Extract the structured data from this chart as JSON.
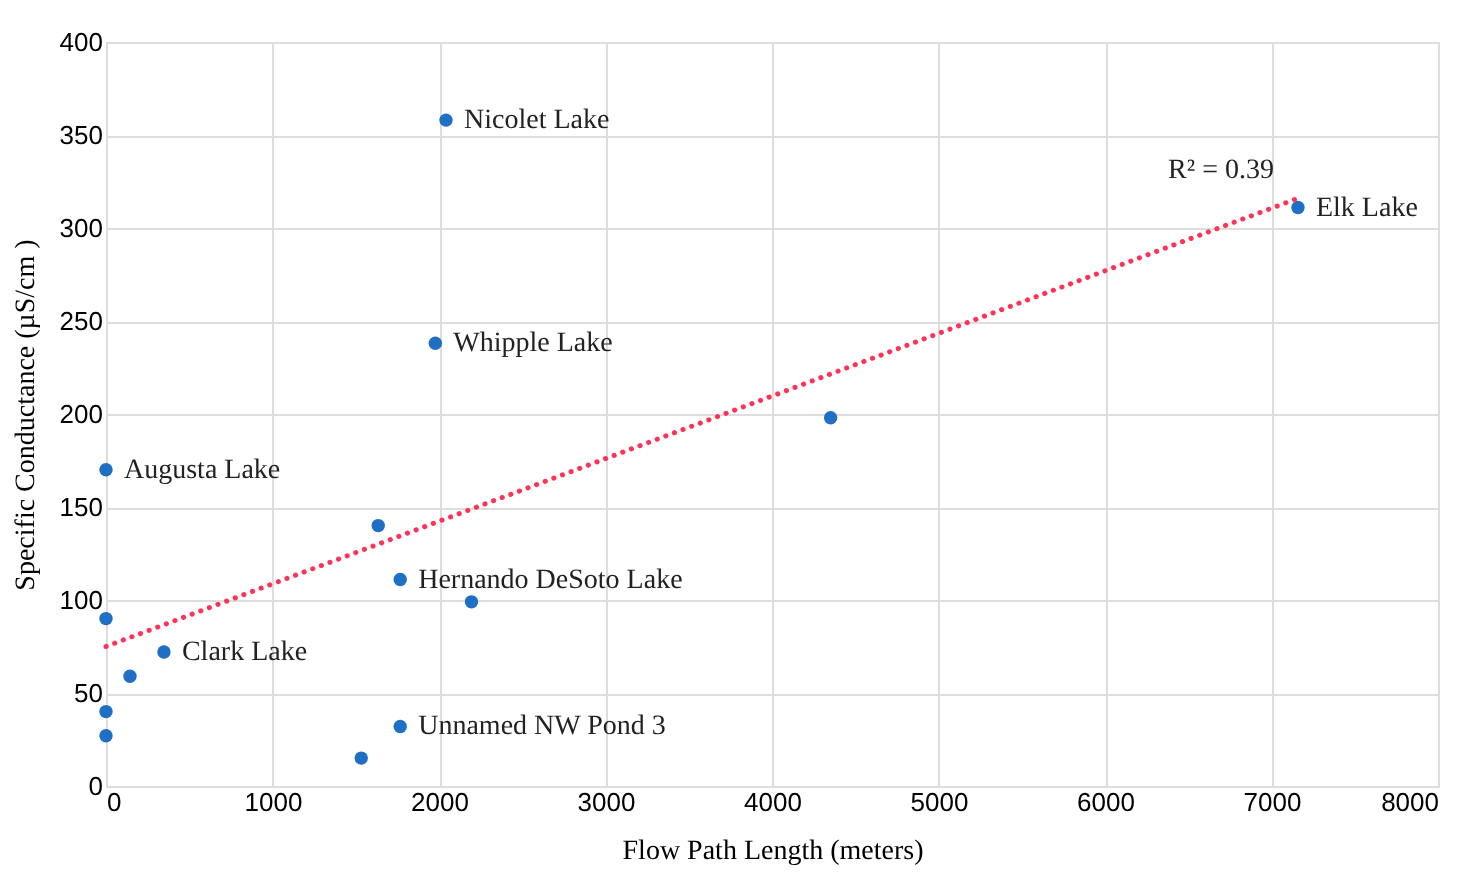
{
  "chart_data": {
    "type": "scatter",
    "xlabel": "Flow Path Length (meters)",
    "ylabel": "Specific Conductance (µS/cm )",
    "series": [
      {
        "color": "#1f6fc5",
        "marker": "circle",
        "x": [
          2042,
          1978,
          0,
          1635,
          1767,
          2195,
          0,
          348,
          144,
          0,
          0,
          1767,
          1533,
          4352,
          7159
        ],
        "values": [
          358,
          238,
          170,
          140,
          111,
          99,
          90,
          72,
          59,
          40,
          27,
          32,
          15,
          198,
          311
        ]
      },
      {
        "type": "line",
        "color": "#ff3355",
        "line_style": "dotted",
        "x": [
          0,
          7159
        ],
        "values": [
          75,
          316
        ]
      }
    ],
    "annotations": [
      {
        "text": "Nicolet Lake",
        "x": 2042,
        "y": 358
      },
      {
        "text": "Whipple Lake",
        "x": 1978,
        "y": 238
      },
      {
        "text": "Augusta Lake",
        "x": 0,
        "y": 170
      },
      {
        "text": "Hernando DeSoto Lake",
        "x": 1767,
        "y": 111
      },
      {
        "text": "Clark Lake",
        "x": 348,
        "y": 72
      },
      {
        "text": "Unnamed NW Pond 3",
        "x": 1767,
        "y": 32
      },
      {
        "text": "Elk Lake",
        "x": 7159,
        "y": 311
      },
      "R² = 0.39"
    ],
    "xlim": [
      0,
      8000
    ],
    "xticks": [
      0,
      1000,
      2000,
      3000,
      4000,
      5000,
      6000,
      7000,
      8000
    ],
    "ylim": [
      0,
      400
    ],
    "yticks": [
      0,
      50,
      100,
      150,
      200,
      250,
      300,
      350,
      400
    ],
    "grid": true
  }
}
